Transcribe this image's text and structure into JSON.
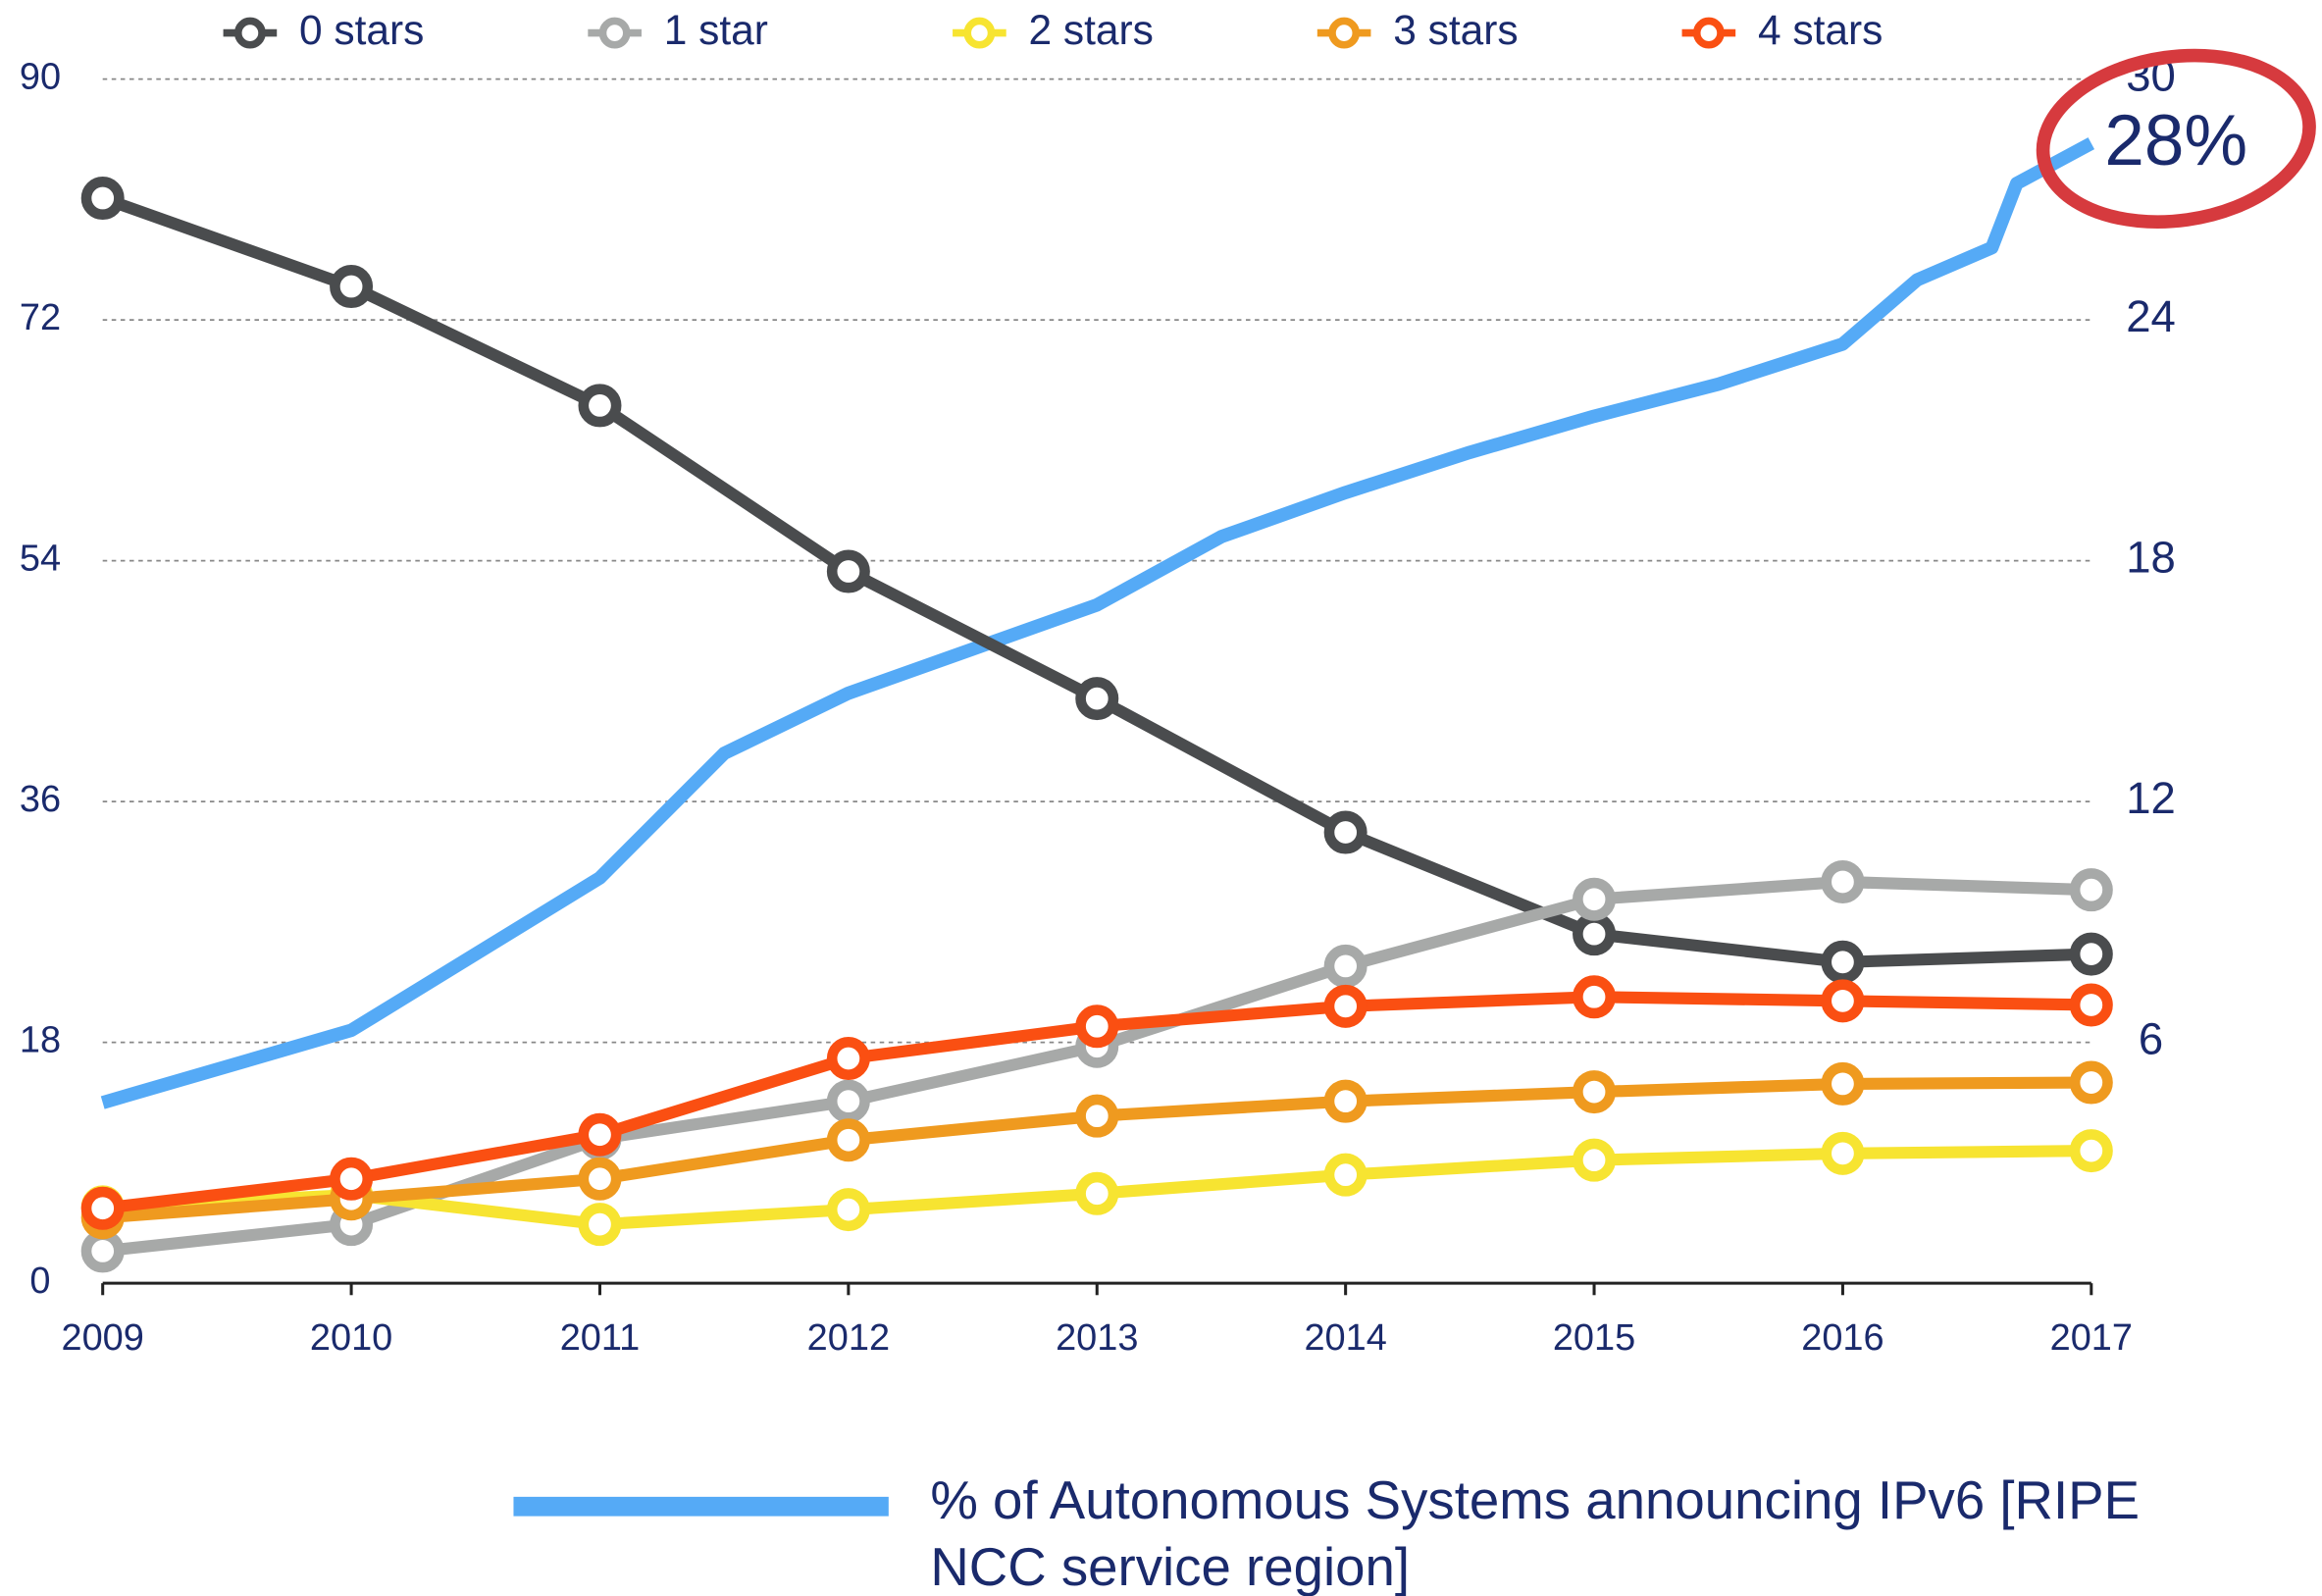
{
  "chart_data": {
    "type": "line",
    "xlim": [
      2009,
      2017
    ],
    "xticks": [
      2009,
      2010,
      2011,
      2012,
      2013,
      2014,
      2015,
      2016,
      2017
    ],
    "ylim": [
      0,
      90
    ],
    "yticks": [
      0,
      18,
      36,
      54,
      72,
      90
    ],
    "y2lim": [
      0,
      30
    ],
    "y2ticks": [
      6,
      12,
      18,
      24,
      30
    ],
    "grid": true,
    "annotation": "28%",
    "series": [
      {
        "name": "0 stars",
        "color": "#4a4c4e",
        "x": [
          2009,
          2010,
          2011,
          2012,
          2013,
          2014,
          2015,
          2016,
          2017
        ],
        "values": [
          81.1,
          74.5,
          65.6,
          53.2,
          43.7,
          33.7,
          26.1,
          24.0,
          24.6
        ]
      },
      {
        "name": "1 star",
        "color": "#a7a9a8",
        "x": [
          2009,
          2010,
          2011,
          2012,
          2013,
          2014,
          2015,
          2016,
          2017
        ],
        "values": [
          2.4,
          4.4,
          10.8,
          13.6,
          17.7,
          23.7,
          28.7,
          30.0,
          29.4
        ]
      },
      {
        "name": "2 stars",
        "color": "#f7e431",
        "x": [
          2009,
          2010,
          2011,
          2012,
          2013,
          2014,
          2015,
          2016,
          2017
        ],
        "values": [
          5.7,
          6.6,
          4.4,
          5.5,
          6.7,
          8.1,
          9.2,
          9.7,
          9.9
        ]
      },
      {
        "name": "3 stars",
        "color": "#ef9a1f",
        "x": [
          2009,
          2010,
          2011,
          2012,
          2013,
          2014,
          2015,
          2016,
          2017
        ],
        "values": [
          4.9,
          6.3,
          7.8,
          10.7,
          12.5,
          13.6,
          14.3,
          14.9,
          15.0
        ]
      },
      {
        "name": "4 stars",
        "color": "#fa4f12",
        "x": [
          2009,
          2010,
          2011,
          2012,
          2013,
          2014,
          2015,
          2016,
          2017
        ],
        "values": [
          5.6,
          7.8,
          11.1,
          16.8,
          19.2,
          20.7,
          21.4,
          21.1,
          20.8
        ]
      },
      {
        "name": "% of Autonomous Systems announcing IPv6 [RIPE NCC service region]",
        "color": "#55aaf6",
        "axis": "y2",
        "x": [
          2009,
          2010,
          2011,
          2011.5,
          2012,
          2012.5,
          2013,
          2013.5,
          2014,
          2014.5,
          2015,
          2015.5,
          2016,
          2016.3,
          2016.6,
          2016.7,
          2017
        ],
        "values": [
          4.5,
          6.3,
          10.1,
          13.2,
          14.7,
          15.8,
          16.9,
          18.6,
          19.7,
          20.7,
          21.6,
          22.4,
          23.4,
          25.0,
          25.8,
          27.4,
          28.4
        ]
      }
    ]
  }
}
